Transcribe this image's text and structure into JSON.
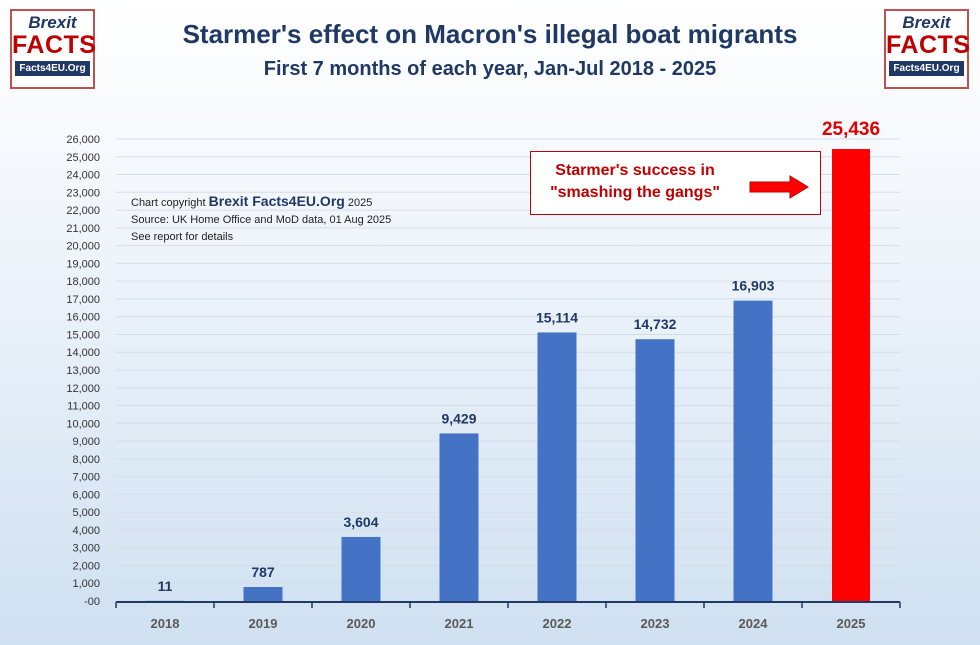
{
  "logos": {
    "line1": "Brexit",
    "line2": "FACTS",
    "line3": "Facts4EU.Org"
  },
  "credits": {
    "prefix": "Chart copyright ",
    "brand": "Brexit Facts4EU.Org",
    "year": " 2025",
    "source": "Source: UK Home Office and MoD data, 01 Aug 2025",
    "note": "See report for details"
  },
  "callout": {
    "line1": "Starmer's success in",
    "line2": "\"smashing the gangs\"",
    "color": "#c00000"
  },
  "colors": {
    "bar": "#4472c4",
    "highlight_bar": "#ff0000",
    "title": "#1f3864"
  },
  "chart_data": {
    "type": "bar",
    "title": "Starmer's effect on Macron's illegal boat migrants",
    "subtitle": "First 7 months of each year, Jan-Jul 2018 - 2025",
    "categories": [
      "2018",
      "2019",
      "2020",
      "2021",
      "2022",
      "2023",
      "2024",
      "2025"
    ],
    "values": [
      11,
      787,
      3604,
      9429,
      15114,
      14732,
      16903,
      25436
    ],
    "data_labels": [
      "11",
      "787",
      "3,604",
      "9,429",
      "15,114",
      "14,732",
      "16,903",
      "25,436"
    ],
    "highlight_index": 7,
    "ylim": [
      0,
      26000
    ],
    "ytick_step": 1000,
    "ytick_labels": [
      "-00",
      "1,000",
      "2,000",
      "3,000",
      "4,000",
      "5,000",
      "6,000",
      "7,000",
      "8,000",
      "9,000",
      "10,000",
      "11,000",
      "12,000",
      "13,000",
      "14,000",
      "15,000",
      "16,000",
      "17,000",
      "18,000",
      "19,000",
      "20,000",
      "21,000",
      "22,000",
      "23,000",
      "24,000",
      "25,000",
      "26,000"
    ],
    "grid": true,
    "legend": "none",
    "xlabel": "",
    "ylabel": ""
  }
}
